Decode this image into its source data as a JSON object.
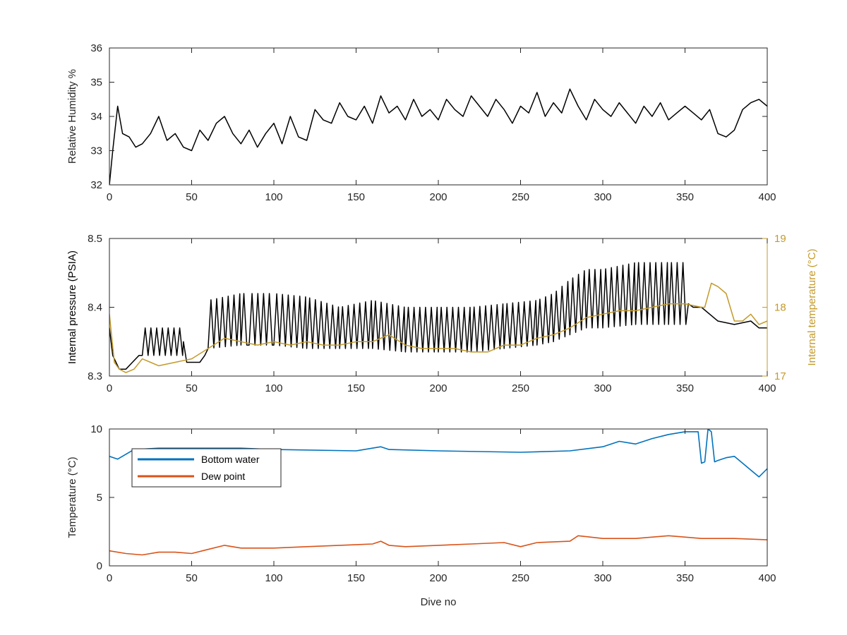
{
  "chart_data": [
    {
      "type": "line",
      "xlabel": "",
      "ylabel": "Relative Humidity %",
      "xlim": [
        0,
        400
      ],
      "ylim": [
        32,
        36
      ],
      "xticks": [
        0,
        50,
        100,
        150,
        200,
        250,
        300,
        350,
        400
      ],
      "yticks": [
        32,
        33,
        34,
        35,
        36
      ],
      "grid": false,
      "series": [
        {
          "color": "#000000",
          "x": [
            0,
            2,
            5,
            8,
            12,
            16,
            20,
            25,
            30,
            35,
            40,
            45,
            50,
            55,
            60,
            65,
            70,
            75,
            80,
            85,
            90,
            95,
            100,
            105,
            110,
            115,
            120,
            125,
            130,
            135,
            140,
            145,
            150,
            155,
            160,
            165,
            170,
            175,
            180,
            185,
            190,
            195,
            200,
            205,
            210,
            215,
            220,
            225,
            230,
            235,
            240,
            245,
            250,
            255,
            260,
            265,
            270,
            275,
            280,
            285,
            290,
            295,
            300,
            305,
            310,
            315,
            320,
            325,
            330,
            335,
            340,
            345,
            350,
            355,
            360,
            365,
            370,
            375,
            380,
            385,
            390,
            395,
            400
          ],
          "values": [
            32.0,
            33.0,
            34.3,
            33.5,
            33.4,
            33.1,
            33.2,
            33.5,
            34.0,
            33.3,
            33.5,
            33.1,
            33.0,
            33.6,
            33.3,
            33.8,
            34.0,
            33.5,
            33.2,
            33.6,
            33.1,
            33.5,
            33.8,
            33.2,
            34.0,
            33.4,
            33.3,
            34.2,
            33.9,
            33.8,
            34.4,
            34.0,
            33.9,
            34.3,
            33.8,
            34.6,
            34.1,
            34.3,
            33.9,
            34.5,
            34.0,
            34.2,
            33.9,
            34.5,
            34.2,
            34.0,
            34.6,
            34.3,
            34.0,
            34.5,
            34.2,
            33.8,
            34.3,
            34.1,
            34.7,
            34.0,
            34.4,
            34.1,
            34.8,
            34.3,
            33.9,
            34.5,
            34.2,
            34.0,
            34.4,
            34.1,
            33.8,
            34.3,
            34.0,
            34.4,
            33.9,
            34.1,
            34.3,
            34.1,
            33.9,
            34.2,
            33.5,
            33.4,
            33.6,
            34.2,
            34.4,
            34.5,
            34.3
          ]
        }
      ]
    },
    {
      "type": "line",
      "xlabel": "",
      "ylabel": "Internal pressure (PSIA)",
      "ylabel_right": "Internal temperature (°C)",
      "xlim": [
        0,
        400
      ],
      "ylim": [
        8.3,
        8.5
      ],
      "ylim_right": [
        17,
        19
      ],
      "xticks": [
        0,
        50,
        100,
        150,
        200,
        250,
        300,
        350,
        400
      ],
      "yticks": [
        8.3,
        8.4,
        8.5
      ],
      "yticks_right": [
        17,
        18,
        19
      ],
      "grid": false,
      "series": [
        {
          "color": "#000000",
          "axis": "left",
          "x": [
            0,
            2,
            4,
            6,
            8,
            10,
            14,
            18,
            20,
            45,
            47,
            50,
            55,
            58,
            60,
            80,
            85,
            100,
            120,
            140,
            160,
            180,
            200,
            220,
            240,
            260,
            270,
            280,
            290,
            300,
            320,
            340,
            352,
            355,
            360,
            370,
            380,
            390,
            395,
            400
          ],
          "values": [
            8.37,
            8.33,
            8.32,
            8.31,
            8.31,
            8.31,
            8.32,
            8.33,
            8.35,
            8.35,
            8.32,
            8.32,
            8.32,
            8.33,
            8.37,
            8.375,
            8.38,
            8.38,
            8.375,
            8.37,
            8.37,
            8.37,
            8.37,
            8.365,
            8.37,
            8.375,
            8.38,
            8.39,
            8.4,
            8.4,
            8.405,
            8.405,
            8.405,
            8.4,
            8.4,
            8.38,
            8.375,
            8.38,
            8.37,
            8.37
          ],
          "oscillation_top": [
            null,
            null,
            null,
            null,
            null,
            null,
            null,
            null,
            8.37,
            8.37,
            null,
            null,
            null,
            null,
            8.41,
            8.42,
            8.42,
            8.42,
            8.415,
            8.4,
            8.41,
            8.4,
            8.4,
            8.4,
            8.405,
            8.41,
            8.42,
            8.44,
            8.455,
            8.455,
            8.465,
            8.465,
            8.465,
            null,
            null,
            null,
            null,
            null,
            null,
            null
          ],
          "oscillation_bottom": [
            null,
            null,
            null,
            null,
            null,
            null,
            null,
            null,
            8.33,
            8.33,
            null,
            null,
            null,
            null,
            8.34,
            8.345,
            8.345,
            8.345,
            8.34,
            8.34,
            8.34,
            8.335,
            8.335,
            8.335,
            8.34,
            8.345,
            8.35,
            8.36,
            8.37,
            8.37,
            8.375,
            8.375,
            8.375,
            null,
            null,
            null,
            null,
            null,
            null,
            null
          ]
        },
        {
          "color": "#C39A2A",
          "axis": "right",
          "x": [
            0,
            3,
            6,
            10,
            15,
            20,
            25,
            30,
            40,
            50,
            60,
            70,
            80,
            90,
            100,
            110,
            120,
            130,
            140,
            150,
            160,
            170,
            180,
            190,
            200,
            210,
            220,
            230,
            240,
            250,
            260,
            270,
            280,
            290,
            300,
            310,
            320,
            330,
            340,
            350,
            360,
            362,
            366,
            370,
            375,
            380,
            385,
            390,
            395,
            400
          ],
          "values": [
            17.9,
            17.2,
            17.1,
            17.05,
            17.1,
            17.25,
            17.2,
            17.15,
            17.2,
            17.25,
            17.4,
            17.55,
            17.5,
            17.45,
            17.5,
            17.45,
            17.5,
            17.45,
            17.45,
            17.5,
            17.5,
            17.6,
            17.45,
            17.4,
            17.4,
            17.4,
            17.35,
            17.35,
            17.45,
            17.45,
            17.55,
            17.6,
            17.7,
            17.85,
            17.9,
            17.95,
            17.95,
            18.0,
            18.05,
            18.05,
            18.0,
            18.0,
            18.35,
            18.3,
            18.2,
            17.8,
            17.8,
            17.9,
            17.75,
            17.8
          ]
        }
      ]
    },
    {
      "type": "line",
      "xlabel": "Dive no",
      "ylabel": "Temperature (°C)",
      "xlim": [
        0,
        400
      ],
      "ylim": [
        0,
        10
      ],
      "xticks": [
        0,
        50,
        100,
        150,
        200,
        250,
        300,
        350,
        400
      ],
      "yticks": [
        0,
        5,
        10
      ],
      "grid": false,
      "legend": "top-left",
      "series": [
        {
          "name": "Bottom water",
          "color": "#0072BD",
          "x": [
            0,
            5,
            15,
            30,
            50,
            80,
            100,
            150,
            165,
            170,
            200,
            250,
            280,
            300,
            310,
            320,
            330,
            340,
            350,
            355,
            358,
            360,
            362,
            364,
            366,
            368,
            370,
            375,
            380,
            385,
            390,
            395,
            400
          ],
          "values": [
            8.0,
            7.8,
            8.5,
            8.6,
            8.6,
            8.6,
            8.5,
            8.4,
            8.7,
            8.5,
            8.4,
            8.3,
            8.4,
            8.7,
            9.1,
            8.9,
            9.3,
            9.6,
            9.8,
            9.8,
            9.8,
            7.5,
            7.6,
            10.0,
            9.8,
            7.6,
            7.7,
            7.9,
            8.0,
            7.5,
            7.0,
            6.5,
            7.1
          ]
        },
        {
          "name": "Dew point",
          "color": "#D95319",
          "x": [
            0,
            10,
            20,
            30,
            40,
            50,
            60,
            70,
            80,
            90,
            100,
            120,
            140,
            160,
            165,
            170,
            180,
            200,
            220,
            240,
            250,
            260,
            280,
            285,
            300,
            320,
            340,
            360,
            380,
            400
          ],
          "values": [
            1.1,
            0.9,
            0.8,
            1.0,
            1.0,
            0.9,
            1.2,
            1.5,
            1.3,
            1.3,
            1.3,
            1.4,
            1.5,
            1.6,
            1.8,
            1.5,
            1.4,
            1.5,
            1.6,
            1.7,
            1.4,
            1.7,
            1.8,
            2.2,
            2.0,
            2.0,
            2.2,
            2.0,
            2.0,
            1.9
          ]
        }
      ]
    }
  ]
}
